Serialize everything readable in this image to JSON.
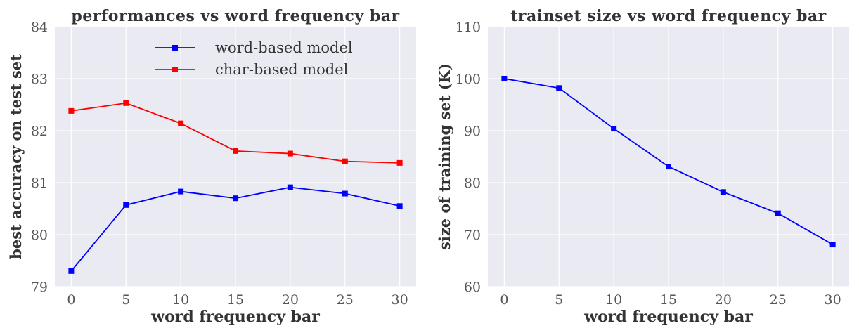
{
  "chart_data": [
    {
      "type": "line",
      "title": "performances vs word frequency bar",
      "xlabel": "word frequency bar",
      "ylabel": "best accuracy on test set",
      "x": [
        0,
        5,
        10,
        15,
        20,
        25,
        30
      ],
      "xlim": [
        -1.5,
        31.5
      ],
      "ylim": [
        79,
        84
      ],
      "xticks": [
        0,
        5,
        10,
        15,
        20,
        25,
        30
      ],
      "yticks": [
        79,
        80,
        81,
        82,
        83,
        84
      ],
      "grid": true,
      "legend": "top-center",
      "series": [
        {
          "name": "word-based model",
          "color": "#0000ff",
          "marker": "square",
          "values": [
            79.3,
            80.57,
            80.83,
            80.7,
            80.91,
            80.79,
            80.55
          ]
        },
        {
          "name": "char-based model",
          "color": "#ff0000",
          "marker": "square",
          "values": [
            82.38,
            82.53,
            82.14,
            81.61,
            81.56,
            81.41,
            81.38
          ]
        }
      ]
    },
    {
      "type": "line",
      "title": "trainset size vs word frequency bar",
      "xlabel": "word frequency bar",
      "ylabel": "size of training set (K)",
      "x": [
        0,
        5,
        10,
        15,
        20,
        25,
        30
      ],
      "xlim": [
        -1.5,
        31.5
      ],
      "ylim": [
        60,
        110
      ],
      "xticks": [
        0,
        5,
        10,
        15,
        20,
        25,
        30
      ],
      "yticks": [
        60,
        70,
        80,
        90,
        100,
        110
      ],
      "grid": true,
      "series": [
        {
          "color": "#0000ff",
          "marker": "square",
          "values": [
            100,
            98.2,
            90.4,
            83.1,
            78.2,
            74.1,
            68.1
          ]
        }
      ]
    }
  ]
}
